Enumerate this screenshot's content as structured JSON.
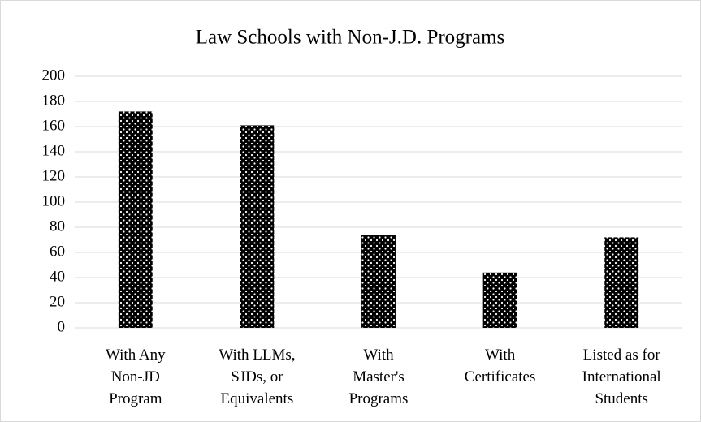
{
  "chart_data": {
    "type": "bar",
    "title": "Law Schools with Non-J.D. Programs",
    "categories": [
      "With Any\nNon-JD\nProgram",
      "With LLMs,\nSJDs, or\nEquivalents",
      "With\nMaster's\nPrograms",
      "With\nCertificates",
      "Listed as for\nInternational\nStudents"
    ],
    "values": [
      172,
      161,
      74,
      44,
      72
    ],
    "color": "#000000",
    "ylim": [
      0,
      200
    ],
    "yticks": [
      0,
      20,
      40,
      60,
      80,
      100,
      120,
      140,
      160,
      180,
      200
    ],
    "grid": true
  }
}
